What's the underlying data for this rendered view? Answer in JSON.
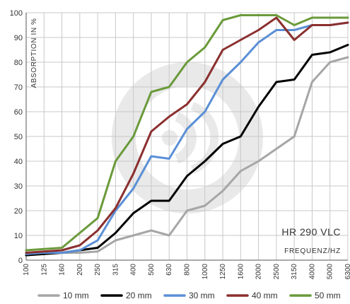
{
  "chart_data": {
    "type": "line",
    "ylabel": "ABSORPTION IN %",
    "xlabel": "FREQUENZ/HZ",
    "product_label": "HR 290 VLC",
    "ylim": [
      0,
      100
    ],
    "yticks": [
      0,
      10,
      20,
      30,
      40,
      50,
      60,
      70,
      80,
      90,
      100
    ],
    "grid": true,
    "legend_position": "bottom",
    "categories": [
      "100",
      "125",
      "160",
      "200",
      "250",
      "315",
      "400",
      "500",
      "630",
      "800",
      "1000",
      "1250",
      "1600",
      "2000",
      "2500",
      "3150",
      "4000",
      "5000",
      "6300"
    ],
    "series": [
      {
        "name": "10 mm",
        "color": "#a6a6a6",
        "values": [
          2,
          2.5,
          3,
          3,
          3.5,
          8,
          10,
          12,
          10,
          20,
          22,
          28,
          36,
          40,
          45,
          50,
          72,
          80,
          82
        ]
      },
      {
        "name": "20 mm",
        "color": "#000000",
        "values": [
          2,
          2.5,
          3,
          4,
          5,
          11,
          19,
          24,
          24,
          34,
          40,
          47,
          50,
          62,
          72,
          73,
          83,
          84,
          87
        ]
      },
      {
        "name": "30 mm",
        "color": "#5b8fd6",
        "values": [
          2.5,
          3,
          3,
          4,
          8,
          20,
          29,
          42,
          41,
          53,
          60,
          73,
          80,
          88,
          93,
          93,
          95,
          95,
          96
        ]
      },
      {
        "name": "40 mm",
        "color": "#8b2f2f",
        "values": [
          3,
          3.5,
          4,
          6,
          12,
          21,
          35,
          52,
          58,
          63,
          72,
          85,
          89,
          93,
          98,
          89,
          95,
          95,
          96
        ]
      },
      {
        "name": "50 mm",
        "color": "#6a9a3a",
        "values": [
          4,
          4.5,
          5,
          11,
          17,
          40,
          50,
          68,
          70,
          80,
          86,
          97,
          99,
          99,
          99,
          95,
          98,
          98,
          98
        ]
      }
    ]
  }
}
